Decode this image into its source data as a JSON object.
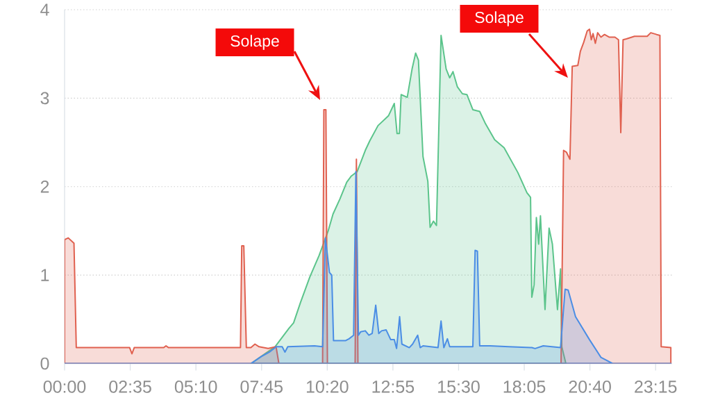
{
  "chart_data": {
    "type": "area",
    "xlim": [
      0,
      23.9
    ],
    "ylim": [
      0,
      4
    ],
    "xticks": [
      {
        "value": 0,
        "label": "00:00"
      },
      {
        "value": 2.5833,
        "label": "02:35"
      },
      {
        "value": 5.1667,
        "label": "05:10"
      },
      {
        "value": 7.75,
        "label": "07:45"
      },
      {
        "value": 10.3333,
        "label": "10:20"
      },
      {
        "value": 12.9167,
        "label": "12:55"
      },
      {
        "value": 15.5,
        "label": "15:30"
      },
      {
        "value": 18.0833,
        "label": "18:05"
      },
      {
        "value": 20.6667,
        "label": "20:40"
      },
      {
        "value": 23.25,
        "label": "23:15"
      }
    ],
    "yticks": [
      0,
      1,
      2,
      3,
      4
    ],
    "grid": "y",
    "series": [
      {
        "color": "#5bc48b",
        "x": [
          7.33,
          8.28,
          8.83,
          9.01,
          9.28,
          9.65,
          10.01,
          10.37,
          10.56,
          10.83,
          11.1,
          11.28,
          11.51,
          11.83,
          12.01,
          12.33,
          12.74,
          12.97,
          13.08,
          13.17,
          13.24,
          13.48,
          13.67,
          13.81,
          13.92,
          14.1,
          14.29,
          14.38,
          14.51,
          14.63,
          14.81,
          15.01,
          15.15,
          15.28,
          15.45,
          15.65,
          15.83,
          16.06,
          16.33,
          16.56,
          16.92,
          17.29,
          17.83,
          18.19,
          18.33,
          18.38,
          18.47,
          18.56,
          18.65,
          18.72,
          18.9,
          19.06,
          19.19,
          19.39,
          19.51,
          19.56,
          19.72
        ],
        "values": [
          0,
          0.19,
          0.4,
          0.46,
          0.69,
          0.98,
          1.22,
          1.5,
          1.69,
          1.86,
          2.05,
          2.12,
          2.17,
          2.41,
          2.52,
          2.69,
          2.8,
          2.94,
          2.6,
          2.6,
          3.04,
          3.01,
          3.33,
          3.51,
          3.43,
          2.34,
          2.06,
          1.54,
          1.61,
          1.56,
          3.71,
          3.33,
          3.23,
          3.3,
          3.13,
          3.05,
          3.04,
          2.87,
          2.85,
          2.71,
          2.53,
          2.44,
          2.16,
          1.93,
          1.88,
          0.75,
          0.89,
          1.65,
          1.35,
          1.67,
          0.61,
          1.53,
          1.35,
          0.61,
          1.07,
          0.19,
          0
        ]
      },
      {
        "color": "#e0604f",
        "x": [
          0,
          0.145,
          0.37,
          0.46,
          2.56,
          2.65,
          2.74,
          3.9,
          3.99,
          4.09,
          6.92,
          6.97,
          7.05,
          7.15,
          7.33,
          7.49,
          7.65,
          8.01,
          8.32,
          8.43,
          10.15,
          10.2,
          10.28,
          10.34,
          11.43,
          11.48,
          11.54,
          19.53,
          19.63,
          19.74,
          19.88,
          19.97,
          20.19,
          20.29,
          20.42,
          20.56,
          20.65,
          20.72,
          20.79,
          20.88,
          20.97,
          21.1,
          21.24,
          21.42,
          21.65,
          21.79,
          21.88,
          21.97,
          22.1,
          22.42,
          22.92,
          23.06,
          23.29,
          23.42,
          23.47,
          23.85
        ],
        "values": [
          1.4,
          1.42,
          1.36,
          0.18,
          0.18,
          0.11,
          0.18,
          0.18,
          0.2,
          0.18,
          0.18,
          1.33,
          1.33,
          0.18,
          0.18,
          0.22,
          0.19,
          0.17,
          0.19,
          0,
          0,
          2.87,
          2.87,
          0,
          0,
          2.31,
          0,
          0,
          2.41,
          2.39,
          2.31,
          3.36,
          3.37,
          3.53,
          3.63,
          3.76,
          3.78,
          3.66,
          3.73,
          3.62,
          3.74,
          3.69,
          3.72,
          3.69,
          3.69,
          3.66,
          2.61,
          3.66,
          3.67,
          3.7,
          3.7,
          3.74,
          3.72,
          3.71,
          0.19,
          0.18
        ]
      },
      {
        "color": "#4a8de5",
        "x": [
          0,
          7.33,
          7.74,
          8.06,
          8.33,
          8.56,
          8.67,
          8.78,
          9.83,
          10.15,
          10.26,
          10.42,
          10.51,
          10.58,
          11.06,
          11.19,
          11.37,
          11.46,
          11.56,
          11.65,
          11.83,
          11.97,
          12.1,
          12.24,
          12.36,
          12.47,
          12.65,
          12.83,
          12.97,
          13.06,
          13.18,
          13.27,
          13.56,
          13.69,
          13.89,
          13.99,
          14.1,
          14.69,
          14.81,
          14.92,
          15.06,
          15.15,
          16.06,
          16.15,
          16.24,
          16.33,
          16.74,
          17.47,
          18.38,
          18.51,
          18.83,
          19.51,
          19.69,
          19.81,
          20.1,
          20.65,
          21.1,
          21.56,
          23.85
        ],
        "values": [
          0,
          0,
          0.08,
          0.13,
          0.19,
          0.19,
          0.13,
          0.19,
          0.2,
          0.19,
          1.42,
          1.03,
          1.0,
          0.26,
          0.26,
          0.28,
          0.32,
          2.17,
          0.32,
          0.36,
          0.37,
          0.32,
          0.34,
          0.66,
          0.34,
          0.37,
          0.38,
          0.27,
          0.27,
          0.17,
          0.53,
          0.22,
          0.18,
          0.22,
          0.32,
          0.18,
          0.2,
          0.18,
          0.48,
          0.18,
          0.28,
          0.19,
          0.19,
          1.28,
          1.27,
          0.2,
          0.2,
          0.19,
          0.18,
          0.17,
          0.2,
          0.18,
          0.84,
          0.83,
          0.53,
          0.27,
          0.07,
          0,
          0
        ]
      }
    ],
    "annotations": [
      "Solape",
      "Solape"
    ]
  }
}
